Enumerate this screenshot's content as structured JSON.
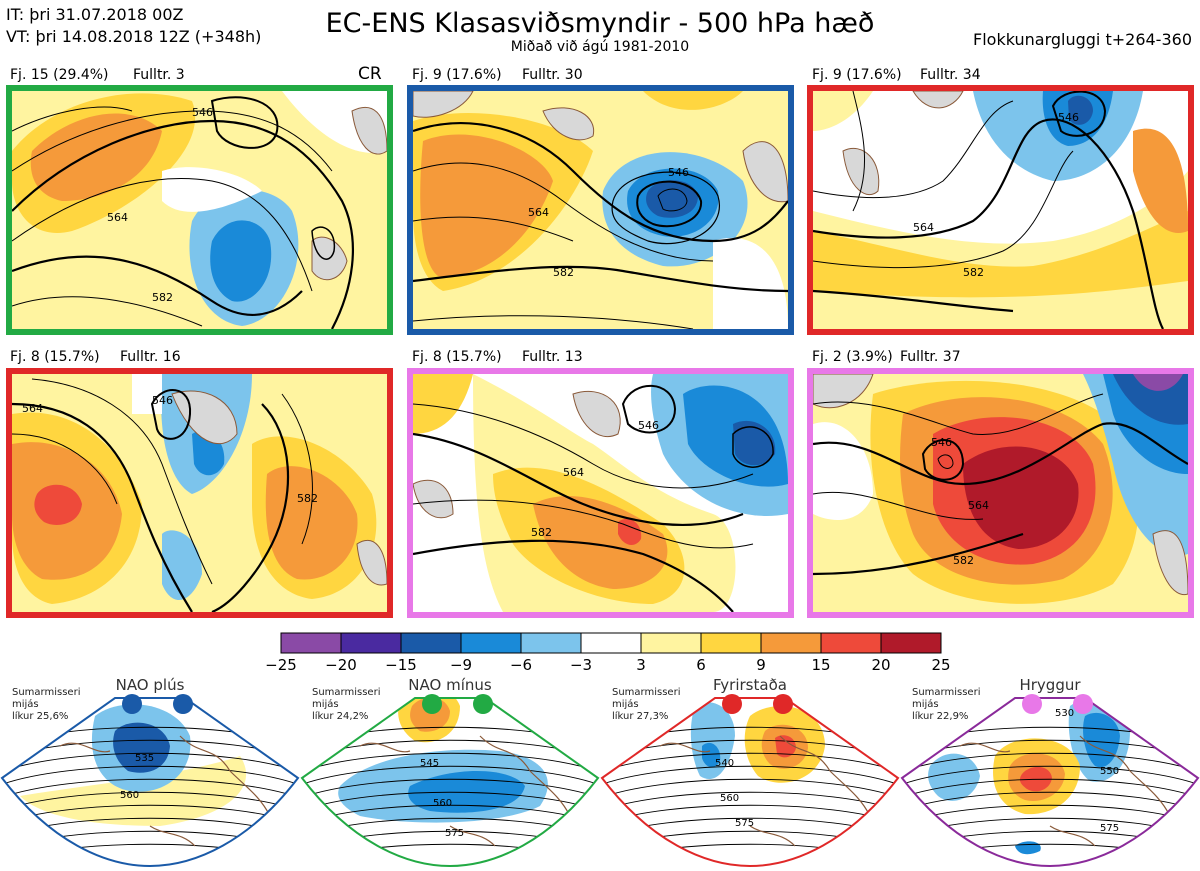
{
  "header": {
    "it_line": "IT: þri 31.07.2018 00Z",
    "vt_line": "VT: þri 14.08.2018 12Z  (+348h)",
    "title": "EC-ENS Klasasviðsmyndir - 500 hPa hæð",
    "subtitle": "Miðað við ágú 1981-2010",
    "window": "Flokkunargluggi t+264-360"
  },
  "panels": [
    {
      "label": "Fj. 15 (29.4%)",
      "rep": "Fulltr. 3",
      "tag": "CR",
      "border": "#22aa44",
      "contours": [
        "546",
        "564",
        "582"
      ]
    },
    {
      "label": "Fj. 9 (17.6%)",
      "rep": "Fulltr. 30",
      "tag": "",
      "border": "#1a5aa8",
      "contours": [
        "546",
        "564",
        "582"
      ]
    },
    {
      "label": "Fj. 9 (17.6%)",
      "rep": "Fulltr. 34",
      "tag": "",
      "border": "#e02828",
      "contours": [
        "546",
        "564",
        "582"
      ]
    },
    {
      "label": "Fj. 8 (15.7%)",
      "rep": "Fulltr. 16",
      "tag": "",
      "border": "#e02828",
      "contours": [
        "546",
        "564",
        "582"
      ]
    },
    {
      "label": "Fj. 8 (15.7%)",
      "rep": "Fulltr. 13",
      "tag": "",
      "border": "#e878e8",
      "contours": [
        "546",
        "564",
        "582"
      ]
    },
    {
      "label": "Fj. 2 (3.9%)",
      "rep": "Fulltr. 37",
      "tag": "",
      "border": "#e878e8",
      "contours": [
        "546",
        "564",
        "582"
      ]
    }
  ],
  "colorbar": {
    "ticks": [
      "−25",
      "−20",
      "−15",
      "−9",
      "−6",
      "−3",
      "3",
      "6",
      "9",
      "15",
      "20",
      "25"
    ],
    "colors": [
      "#8a4aa6",
      "#4a2aa0",
      "#1a5aa8",
      "#1a8ad8",
      "#7cc4ec",
      "#ffffff",
      "#fff4a0",
      "#ffd640",
      "#f59a3a",
      "#ee4a3a",
      "#b01a2a"
    ]
  },
  "regimes": [
    {
      "title": "NAO plús",
      "note1": "Sumarmisseri",
      "note2": "mijás",
      "note3": "líkur 25,6%",
      "color": "#1a5aa8",
      "labels": [
        "535",
        "560"
      ]
    },
    {
      "title": "NAO mínus",
      "note1": "Sumarmisseri",
      "note2": "mijás",
      "note3": "líkur 24,2%",
      "color": "#22aa44",
      "labels": [
        "545",
        "560",
        "575"
      ]
    },
    {
      "title": "Fyrirstaða",
      "note1": "Sumarmisseri",
      "note2": "mijás",
      "note3": "líkur 27,3%",
      "color": "#e02828",
      "labels": [
        "540",
        "560",
        "575"
      ]
    },
    {
      "title": "Hryggur",
      "note1": "Sumarmisseri",
      "note2": "mijás",
      "note3": "líkur 22,9%",
      "color": "#8a2a9a",
      "dot": "#e878e8",
      "labels": [
        "530",
        "550",
        "575"
      ]
    }
  ]
}
